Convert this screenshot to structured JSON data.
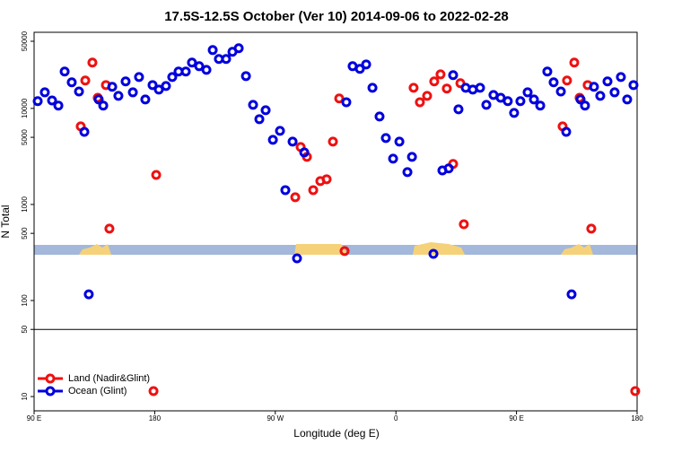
{
  "chart_data": {
    "type": "scatter",
    "title": "17.5S-12.5S October (Ver 10)   2014-09-06 to 2022-02-28",
    "xlabel": "Longitude (deg E)",
    "ylabel": "N Total",
    "xlim": [
      90,
      540
    ],
    "ylim": [
      7.1,
      62000
    ],
    "ylog": true,
    "xticks": [
      {
        "value": 90,
        "label": "90 E"
      },
      180,
      {
        "value": 270,
        "label": "90 W"
      },
      {
        "value": 360,
        "label": "0"
      },
      {
        "value": 450,
        "label": "90 E"
      },
      {
        "value": 540,
        "label": "180"
      }
    ],
    "yticks": [
      10,
      50,
      100,
      500,
      1000,
      5000,
      10000,
      50000
    ],
    "hline": 50,
    "legend": "lower left",
    "series": [
      {
        "name": "Land (Nadir&Glint)",
        "color": "#ee1111",
        "x": [
          124.8,
          128.2,
          133.5,
          137.5,
          143.6,
          146.2,
          181.1,
          179.1,
          284.9,
          288.9,
          293.6,
          298.3,
          303.6,
          308.3,
          313.0,
          317.7,
          321.7,
          373.2,
          377.9,
          383.3,
          388.6,
          393.3,
          398.0,
          402.7,
          408.1,
          410.7,
          484.4,
          487.7,
          493.1,
          497.1,
          503.1,
          505.8,
          538.6
        ],
        "values": [
          6500,
          19500,
          30000,
          12900,
          17500,
          560,
          2030,
          11.4,
          1190,
          3960,
          3130,
          1410,
          1750,
          1830,
          4510,
          12700,
          327,
          16400,
          11600,
          13500,
          19100,
          22600,
          16100,
          2640,
          18300,
          622,
          6500,
          19500,
          30000,
          12900,
          17500,
          560,
          11.4
        ]
      },
      {
        "name": "Ocean (Glint)",
        "color": "#0000dd",
        "x": [
          92.7,
          98.0,
          103.4,
          108.1,
          112.8,
          118.1,
          123.5,
          127.5,
          130.8,
          138.2,
          141.6,
          148.3,
          152.9,
          158.3,
          163.7,
          168.3,
          173.0,
          178.4,
          183.1,
          188.4,
          193.1,
          197.8,
          203.2,
          207.8,
          213.2,
          218.6,
          223.3,
          227.9,
          233.3,
          238.0,
          242.7,
          248.1,
          253.4,
          258.1,
          262.8,
          268.2,
          273.5,
          277.5,
          282.9,
          286.2,
          291.6,
          323.0,
          327.7,
          333.1,
          337.8,
          342.5,
          347.8,
          352.5,
          357.9,
          362.6,
          368.6,
          372.0,
          388.0,
          394.7,
          399.4,
          402.7,
          406.7,
          412.1,
          417.4,
          422.8,
          427.5,
          432.8,
          438.2,
          443.5,
          448.2,
          452.9,
          458.3,
          463.0,
          467.7,
          473.0,
          477.7,
          483.1,
          487.1,
          491.1,
          497.8,
          501.1,
          507.8,
          512.5,
          517.9,
          523.2,
          527.9,
          532.6,
          537.3
        ],
        "values": [
          11900,
          14700,
          12100,
          10700,
          24200,
          18700,
          15000,
          5700,
          116,
          12400,
          10700,
          16800,
          13500,
          19100,
          14700,
          21200,
          12400,
          17500,
          15700,
          17100,
          21200,
          24200,
          24200,
          30000,
          27500,
          25200,
          40500,
          32700,
          32700,
          38800,
          42300,
          21700,
          10900,
          7730,
          9570,
          4710,
          5840,
          1410,
          4510,
          275,
          3480,
          11600,
          27500,
          25800,
          28700,
          16400,
          8240,
          4920,
          3000,
          4510,
          2170,
          3130,
          306,
          2260,
          2370,
          22200,
          9790,
          16400,
          15700,
          16400,
          10900,
          13800,
          12900,
          11900,
          8980,
          11900,
          14700,
          12400,
          10700,
          24200,
          18700,
          15000,
          5700,
          116,
          12400,
          10700,
          16800,
          13500,
          19100,
          14700,
          21200,
          12400,
          17500
        ]
      }
    ]
  }
}
